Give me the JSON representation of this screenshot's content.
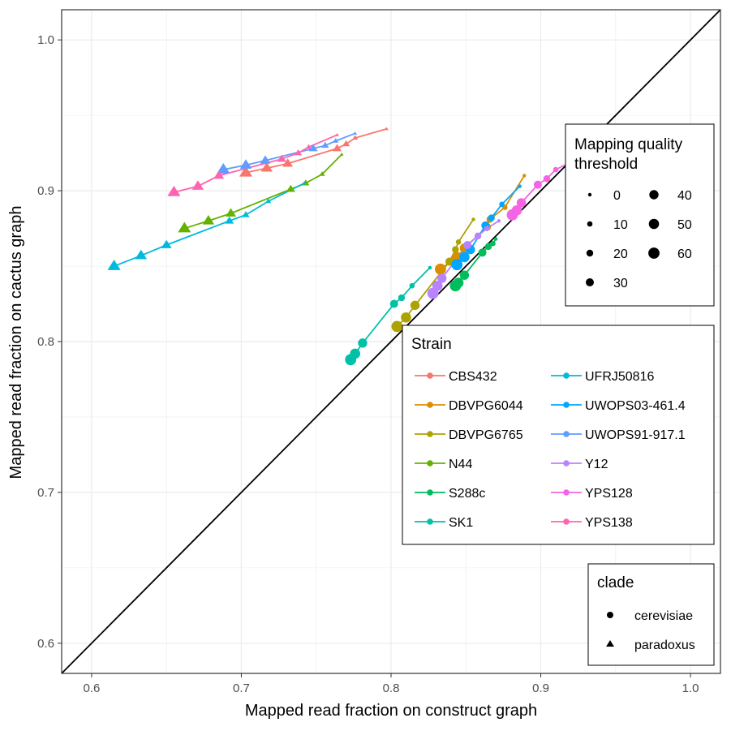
{
  "chart_data": {
    "type": "scatter",
    "xlabel": "Mapped read fraction on construct graph",
    "ylabel": "Mapped read fraction on cactus graph",
    "xlim": [
      0.58,
      1.02
    ],
    "ylim": [
      0.58,
      1.02
    ],
    "x_ticks": [
      0.6,
      0.7,
      0.8,
      0.9,
      1.0
    ],
    "x_tick_labels": [
      "0.6",
      "0.7",
      "0.8",
      "0.9",
      "1.0"
    ],
    "y_ticks": [
      0.6,
      0.7,
      0.8,
      0.9,
      1.0
    ],
    "y_tick_labels": [
      "0.6",
      "0.7",
      "0.8",
      "0.9",
      "1.0"
    ],
    "grid": true,
    "reference_line": "y = x",
    "mapq_thresholds": [
      0,
      10,
      20,
      30,
      40,
      50,
      60
    ],
    "series": [
      {
        "name": "CBS432",
        "clade": "paradoxus",
        "color": "#F8766D",
        "points": [
          [
            0.797,
            0.941
          ],
          [
            0.776,
            0.935
          ],
          [
            0.77,
            0.931
          ],
          [
            0.764,
            0.928
          ],
          [
            0.731,
            0.918
          ],
          [
            0.717,
            0.915
          ],
          [
            0.703,
            0.912
          ]
        ]
      },
      {
        "name": "DBVPG6044",
        "clade": "cerevisiae",
        "color": "#DB8E00",
        "points": [
          [
            0.889,
            0.91
          ],
          [
            0.876,
            0.889
          ],
          [
            0.866,
            0.881
          ],
          [
            0.864,
            0.876
          ],
          [
            0.849,
            0.862
          ],
          [
            0.844,
            0.856
          ],
          [
            0.833,
            0.848
          ]
        ]
      },
      {
        "name": "DBVPG6765",
        "clade": "cerevisiae",
        "color": "#AEA200",
        "points": [
          [
            0.855,
            0.881
          ],
          [
            0.845,
            0.866
          ],
          [
            0.843,
            0.861
          ],
          [
            0.839,
            0.853
          ],
          [
            0.816,
            0.824
          ],
          [
            0.81,
            0.816
          ],
          [
            0.804,
            0.81
          ]
        ]
      },
      {
        "name": "N44",
        "clade": "paradoxus",
        "color": "#64B200",
        "points": [
          [
            0.767,
            0.924
          ],
          [
            0.754,
            0.911
          ],
          [
            0.743,
            0.905
          ],
          [
            0.733,
            0.901
          ],
          [
            0.693,
            0.885
          ],
          [
            0.678,
            0.88
          ],
          [
            0.662,
            0.875
          ]
        ]
      },
      {
        "name": "S288c",
        "clade": "cerevisiae",
        "color": "#00BD5C",
        "points": [
          [
            0.87,
            0.868
          ],
          [
            0.868,
            0.865
          ],
          [
            0.865,
            0.863
          ],
          [
            0.861,
            0.859
          ],
          [
            0.849,
            0.844
          ],
          [
            0.845,
            0.839
          ],
          [
            0.843,
            0.837
          ]
        ]
      },
      {
        "name": "SK1",
        "clade": "cerevisiae",
        "color": "#00C1A7",
        "points": [
          [
            0.826,
            0.849
          ],
          [
            0.814,
            0.837
          ],
          [
            0.807,
            0.829
          ],
          [
            0.802,
            0.825
          ],
          [
            0.781,
            0.799
          ],
          [
            0.776,
            0.792
          ],
          [
            0.773,
            0.788
          ]
        ]
      },
      {
        "name": "UFRJ50816",
        "clade": "paradoxus",
        "color": "#00BADE",
        "points": [
          [
            0.742,
            0.905
          ],
          [
            0.718,
            0.893
          ],
          [
            0.703,
            0.884
          ],
          [
            0.692,
            0.88
          ],
          [
            0.65,
            0.864
          ],
          [
            0.633,
            0.857
          ],
          [
            0.615,
            0.85
          ]
        ]
      },
      {
        "name": "UWOPS03-461.4",
        "clade": "cerevisiae",
        "color": "#00A6FF",
        "points": [
          [
            0.886,
            0.903
          ],
          [
            0.874,
            0.891
          ],
          [
            0.867,
            0.882
          ],
          [
            0.863,
            0.877
          ],
          [
            0.853,
            0.861
          ],
          [
            0.849,
            0.856
          ],
          [
            0.844,
            0.851
          ]
        ]
      },
      {
        "name": "UWOPS91-917.1",
        "clade": "paradoxus",
        "color": "#619CFF",
        "points": [
          [
            0.776,
            0.938
          ],
          [
            0.763,
            0.933
          ],
          [
            0.756,
            0.93
          ],
          [
            0.748,
            0.928
          ],
          [
            0.716,
            0.92
          ],
          [
            0.703,
            0.917
          ],
          [
            0.688,
            0.914
          ]
        ]
      },
      {
        "name": "Y12",
        "clade": "cerevisiae",
        "color": "#B983FF",
        "points": [
          [
            0.872,
            0.88
          ],
          [
            0.864,
            0.875
          ],
          [
            0.858,
            0.87
          ],
          [
            0.851,
            0.864
          ],
          [
            0.834,
            0.842
          ],
          [
            0.831,
            0.837
          ],
          [
            0.828,
            0.832
          ]
        ]
      },
      {
        "name": "YPS128",
        "clade": "cerevisiae",
        "color": "#F564E3",
        "points": [
          [
            0.918,
            0.918
          ],
          [
            0.91,
            0.914
          ],
          [
            0.904,
            0.908
          ],
          [
            0.898,
            0.904
          ],
          [
            0.887,
            0.892
          ],
          [
            0.884,
            0.887
          ],
          [
            0.881,
            0.884
          ]
        ]
      },
      {
        "name": "YPS138",
        "clade": "paradoxus",
        "color": "#FF64B0",
        "points": [
          [
            0.764,
            0.937
          ],
          [
            0.745,
            0.929
          ],
          [
            0.738,
            0.925
          ],
          [
            0.727,
            0.921
          ],
          [
            0.685,
            0.91
          ],
          [
            0.671,
            0.903
          ],
          [
            0.655,
            0.899
          ]
        ]
      }
    ],
    "legends": {
      "size": {
        "title_lines": [
          "Mapping quality",
          "threshold"
        ],
        "entries": [
          "0",
          "10",
          "20",
          "30",
          "40",
          "50",
          "60"
        ]
      },
      "strain": {
        "title": "Strain"
      },
      "clade": {
        "title": "clade",
        "entries": [
          "cerevisiae",
          "paradoxus"
        ]
      }
    }
  }
}
